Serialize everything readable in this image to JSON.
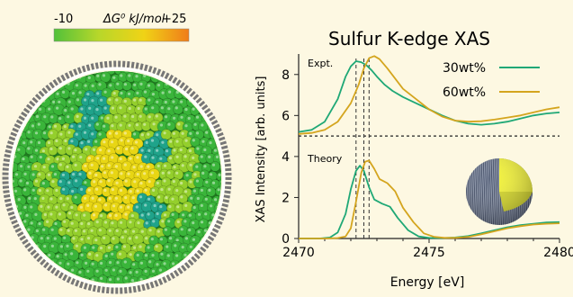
{
  "colorbar": {
    "label_min": "-10",
    "label_max": "+25",
    "title": "ΔG⁰ kJ/mol",
    "colors": [
      "#52c13a",
      "#b8d72a",
      "#f0d316",
      "#f07c1a"
    ]
  },
  "sphere_colors": {
    "dark_green": "#1f7f1f",
    "green": "#3ab53a",
    "lime": "#94cf2c",
    "yellow": "#e8d614",
    "teal": "#1fa38a"
  },
  "chart_data": {
    "type": "line",
    "title": "Sulfur K-edge XAS",
    "xlabel": "Energy [eV]",
    "ylabel": "XAS Intensity [arb. units]",
    "xlim": [
      2470,
      2480
    ],
    "ylim": [
      0,
      9
    ],
    "xticks": [
      "2470",
      "2475",
      "2480"
    ],
    "yticks": [
      "0",
      "2",
      "4",
      "6",
      "8"
    ],
    "legend": "top-right",
    "separator_y": 5,
    "reference_lines_x": [
      2472.2,
      2472.5,
      2472.7
    ],
    "annotations": [
      "Expt.",
      "Theory"
    ],
    "series": [
      {
        "name": "30wt%",
        "color": "#1fa876",
        "panels": [
          {
            "label": "Expt.",
            "x": [
              2470,
              2470.5,
              2471,
              2471.5,
              2471.8,
              2472,
              2472.2,
              2472.4,
              2472.6,
              2472.8,
              2473,
              2473.3,
              2473.6,
              2474,
              2474.5,
              2475,
              2475.5,
              2476,
              2476.5,
              2477,
              2477.5,
              2478,
              2478.5,
              2479,
              2479.5,
              2480
            ],
            "y": [
              5.2,
              5.3,
              5.7,
              6.8,
              7.9,
              8.4,
              8.65,
              8.6,
              8.45,
              8.2,
              7.9,
              7.5,
              7.2,
              6.9,
              6.6,
              6.3,
              6.0,
              5.75,
              5.6,
              5.55,
              5.6,
              5.7,
              5.85,
              6.0,
              6.1,
              6.15
            ]
          },
          {
            "label": "Theory",
            "x": [
              2470,
              2470.8,
              2471.2,
              2471.5,
              2471.8,
              2472,
              2472.2,
              2472.35,
              2472.5,
              2472.7,
              2472.9,
              2473.2,
              2473.5,
              2473.8,
              2474.2,
              2474.6,
              2475,
              2475.5,
              2476,
              2476.5,
              2477,
              2477.5,
              2478,
              2478.5,
              2479,
              2479.5,
              2480
            ],
            "y": [
              0,
              0,
              0.05,
              0.3,
              1.2,
              2.4,
              3.3,
              3.55,
              3.3,
              2.5,
              1.9,
              1.7,
              1.55,
              1.0,
              0.4,
              0.1,
              0.03,
              0.02,
              0.05,
              0.12,
              0.25,
              0.4,
              0.55,
              0.65,
              0.72,
              0.78,
              0.8
            ]
          }
        ]
      },
      {
        "name": "60wt%",
        "color": "#d4a51e",
        "panels": [
          {
            "label": "Expt.",
            "x": [
              2470,
              2470.5,
              2471,
              2471.5,
              2472,
              2472.3,
              2472.5,
              2472.7,
              2472.9,
              2473.1,
              2473.4,
              2473.7,
              2474,
              2474.5,
              2475,
              2475.5,
              2476,
              2476.5,
              2477,
              2477.5,
              2478,
              2478.5,
              2479,
              2479.5,
              2480
            ],
            "y": [
              5.1,
              5.15,
              5.3,
              5.7,
              6.6,
              7.5,
              8.3,
              8.8,
              8.9,
              8.75,
              8.3,
              7.8,
              7.3,
              6.8,
              6.3,
              5.95,
              5.75,
              5.7,
              5.72,
              5.8,
              5.9,
              6.0,
              6.15,
              6.3,
              6.4
            ]
          },
          {
            "label": "Theory",
            "x": [
              2470,
              2471,
              2471.5,
              2471.8,
              2472,
              2472.2,
              2472.4,
              2472.55,
              2472.7,
              2472.9,
              2473.1,
              2473.4,
              2473.7,
              2474,
              2474.4,
              2474.8,
              2475.2,
              2475.6,
              2476,
              2476.5,
              2477,
              2477.5,
              2478,
              2478.5,
              2479,
              2479.5,
              2480
            ],
            "y": [
              0,
              0,
              0.02,
              0.1,
              0.5,
              1.8,
              3.2,
              3.75,
              3.8,
              3.4,
              2.9,
              2.7,
              2.3,
              1.5,
              0.8,
              0.25,
              0.08,
              0.03,
              0.03,
              0.08,
              0.2,
              0.35,
              0.5,
              0.6,
              0.68,
              0.72,
              0.74
            ]
          }
        ]
      }
    ]
  }
}
